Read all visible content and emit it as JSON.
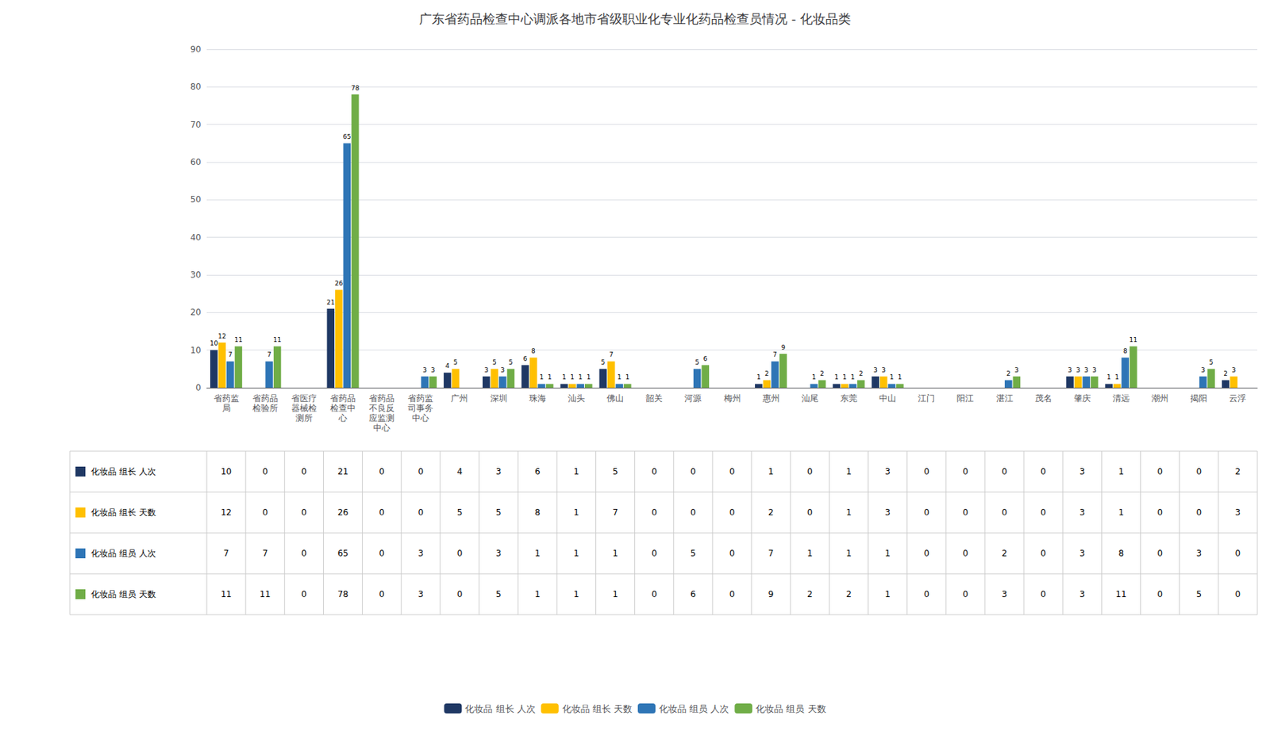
{
  "chart_data": {
    "type": "bar",
    "title": "广东省药品检查中心调派各地市省级职业化专业化药品检查员情况 - 化妆品类",
    "categories": [
      "省药监\n局",
      "省药品\n检验所",
      "省医疗\n器械检\n测所",
      "省药品\n检查中\n心",
      "省药品\n不良反\n应监测\n中心",
      "省药监\n司事务\n中心",
      "广州",
      "深圳",
      "珠海",
      "汕头",
      "佛山",
      "韶关",
      "河源",
      "梅州",
      "惠州",
      "汕尾",
      "东莞",
      "中山",
      "江门",
      "阳江",
      "湛江",
      "茂名",
      "肇庆",
      "清远",
      "潮州",
      "揭阳",
      "云浮"
    ],
    "series": [
      {
        "name": "化妆品 组长 人次",
        "color": "#1F3864",
        "values": [
          10,
          0,
          0,
          21,
          0,
          0,
          4,
          3,
          6,
          1,
          5,
          0,
          0,
          0,
          1,
          0,
          1,
          3,
          0,
          0,
          0,
          0,
          3,
          1,
          0,
          0,
          2
        ]
      },
      {
        "name": "化妆品 组长 天数",
        "color": "#FFC000",
        "values": [
          12,
          0,
          0,
          26,
          0,
          0,
          5,
          5,
          8,
          1,
          7,
          0,
          0,
          0,
          2,
          0,
          1,
          3,
          0,
          0,
          0,
          0,
          3,
          1,
          0,
          0,
          3
        ]
      },
      {
        "name": "化妆品 组员 人次",
        "color": "#2E75B6",
        "values": [
          7,
          7,
          0,
          65,
          0,
          3,
          0,
          3,
          1,
          1,
          1,
          0,
          5,
          0,
          7,
          1,
          1,
          1,
          0,
          0,
          2,
          0,
          3,
          8,
          0,
          3,
          0
        ]
      },
      {
        "name": "化妆品 组员 天数",
        "color": "#70AD47",
        "values": [
          11,
          11,
          0,
          78,
          0,
          3,
          0,
          5,
          1,
          1,
          1,
          0,
          6,
          0,
          9,
          2,
          2,
          1,
          0,
          0,
          3,
          0,
          3,
          11,
          0,
          5,
          0
        ]
      }
    ],
    "ylim": [
      0,
      90
    ],
    "yticks": [
      0,
      10,
      20,
      30,
      40,
      50,
      60,
      70,
      80,
      90
    ],
    "grid": true,
    "legend": "bottom",
    "data_labels": true
  }
}
